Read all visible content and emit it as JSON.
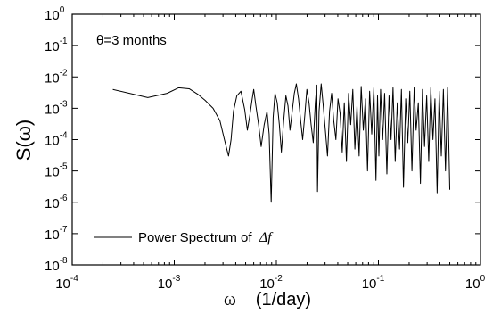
{
  "chart_data": {
    "type": "line",
    "title": "",
    "ylabel": "S(ω)",
    "xlabel_symbol": "ω",
    "xlabel_unit": "(1/day)",
    "x_scale": "log",
    "y_scale": "log",
    "xlim": [
      0.0001,
      1
    ],
    "ylim": [
      1e-08,
      1
    ],
    "grid": false,
    "x_ticks": [
      {
        "base": "10",
        "exp": "-4",
        "value": 0.0001
      },
      {
        "base": "10",
        "exp": "-3",
        "value": 0.001
      },
      {
        "base": "10",
        "exp": "-2",
        "value": 0.01
      },
      {
        "base": "10",
        "exp": "-1",
        "value": 0.1
      },
      {
        "base": "10",
        "exp": "0",
        "value": 1
      }
    ],
    "y_ticks": [
      {
        "base": "10",
        "exp": "0",
        "value": 1
      },
      {
        "base": "10",
        "exp": "-1",
        "value": 0.1
      },
      {
        "base": "10",
        "exp": "-2",
        "value": 0.01
      },
      {
        "base": "10",
        "exp": "-3",
        "value": 0.001
      },
      {
        "base": "10",
        "exp": "-4",
        "value": 0.0001
      },
      {
        "base": "10",
        "exp": "-5",
        "value": 1e-05
      },
      {
        "base": "10",
        "exp": "-6",
        "value": 1e-06
      },
      {
        "base": "10",
        "exp": "-7",
        "value": 1e-07
      },
      {
        "base": "10",
        "exp": "-8",
        "value": 1e-08
      }
    ],
    "annotation": "θ=3 months",
    "legend": {
      "placement": "bottom-left",
      "text": "Power Spectrum of ",
      "math": "Δf"
    },
    "series": [
      {
        "legend_text": "Power Spectrum of Δf",
        "x": [
          0.00025,
          0.00055,
          0.00085,
          0.0011,
          0.0014,
          0.0017,
          0.002,
          0.0024,
          0.0028,
          0.0031,
          0.0034,
          0.0036,
          0.0038,
          0.0041,
          0.0045,
          0.0049,
          0.0052,
          0.0055,
          0.0058,
          0.006,
          0.0063,
          0.0067,
          0.0071,
          0.0076,
          0.0081,
          0.0085,
          0.0089,
          0.0093,
          0.0097,
          0.0102,
          0.0107,
          0.0112,
          0.0118,
          0.0124,
          0.013,
          0.0136,
          0.0143,
          0.015,
          0.0157,
          0.0165,
          0.0173,
          0.0181,
          0.019,
          0.0199,
          0.0209,
          0.0219,
          0.023,
          0.0241,
          0.0249,
          0.0253,
          0.0262,
          0.0275,
          0.0288,
          0.0302,
          0.0317,
          0.0332,
          0.0348,
          0.0365,
          0.0383,
          0.0402,
          0.0421,
          0.0442,
          0.0463,
          0.0486,
          0.051,
          0.0535,
          0.0561,
          0.0588,
          0.0617,
          0.0647,
          0.0678,
          0.0711,
          0.0746,
          0.0782,
          0.082,
          0.086,
          0.0902,
          0.0946,
          0.098,
          0.101,
          0.105,
          0.11,
          0.115,
          0.121,
          0.127,
          0.133,
          0.139,
          0.146,
          0.153,
          0.161,
          0.168,
          0.176,
          0.185,
          0.194,
          0.203,
          0.213,
          0.224,
          0.234,
          0.246,
          0.258,
          0.27,
          0.283,
          0.297,
          0.311,
          0.326,
          0.342,
          0.358,
          0.376,
          0.394,
          0.413,
          0.433,
          0.454,
          0.476,
          0.5
        ],
        "y": [
          0.004,
          0.0022,
          0.003,
          0.0045,
          0.0042,
          0.0028,
          0.0018,
          0.001,
          0.0004,
          0.0001,
          3e-05,
          0.0001,
          0.0008,
          0.0025,
          0.0035,
          0.0009,
          0.0002,
          0.0006,
          0.002,
          0.004,
          0.0012,
          0.0003,
          6e-05,
          0.0003,
          0.0008,
          0.00015,
          1e-06,
          0.0005,
          0.003,
          0.0015,
          0.0003,
          4e-05,
          0.0004,
          0.0025,
          0.0012,
          0.0002,
          0.0008,
          0.003,
          0.006,
          0.002,
          0.0004,
          0.0001,
          0.0006,
          0.004,
          0.0015,
          0.0003,
          8e-05,
          0.0015,
          0.0055,
          2.2e-06,
          0.0008,
          0.006,
          0.0012,
          0.0002,
          3e-05,
          0.0008,
          0.003,
          0.0004,
          0.0001,
          0.002,
          0.0007,
          4e-05,
          0.0015,
          2e-05,
          0.003,
          0.0003,
          0.004,
          5e-05,
          0.0012,
          3e-05,
          0.005,
          0.0002,
          0.002,
          1e-05,
          0.0035,
          0.00015,
          0.0045,
          5e-06,
          0.0025,
          3e-05,
          0.004,
          0.0001,
          0.003,
          8e-06,
          0.0025,
          0.0001,
          0.0045,
          2e-05,
          0.0015,
          5e-05,
          0.004,
          3e-06,
          0.002,
          8e-05,
          0.0035,
          1e-05,
          0.0045,
          0.0002,
          0.0015,
          4e-06,
          0.004,
          6e-05,
          0.0025,
          2e-05,
          0.0045,
          0.0001,
          0.002,
          2e-06,
          0.0035,
          3e-05,
          0.004,
          1e-05,
          0.0045,
          2.5e-06
        ]
      }
    ]
  }
}
